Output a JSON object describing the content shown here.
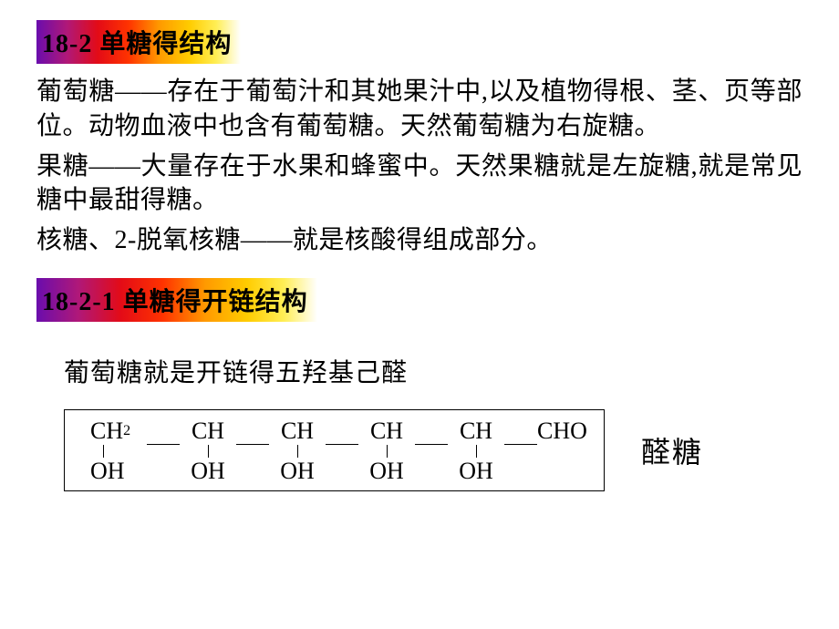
{
  "header1": "18-2 单糖得结构",
  "para1": "葡萄糖——存在于葡萄汁和其她果汁中,以及植物得根、茎、页等部位。动物血液中也含有葡萄糖。天然葡萄糖为右旋糖。",
  "para2": "果糖——大量存在于水果和蜂蜜中。天然果糖就是左旋糖,就是常见糖中最甜得糖。",
  "para3": "核糖、2-脱氧核糖——就是核酸得组成部分。",
  "header2": "18-2-1 单糖得开链结构",
  "sentence": "葡萄糖就是开链得五羟基己醛",
  "chem": {
    "c1": "CH",
    "c1_sub": "2",
    "c2": "CH",
    "c3": "CH",
    "c4": "CH",
    "c5": "CH",
    "c6": "CHO",
    "oh": "OH"
  },
  "label": "醛糖",
  "colors": {
    "grad_start": "#6a0dad",
    "grad_end": "#ffffff",
    "text": "#000000",
    "bg": "#ffffff"
  }
}
